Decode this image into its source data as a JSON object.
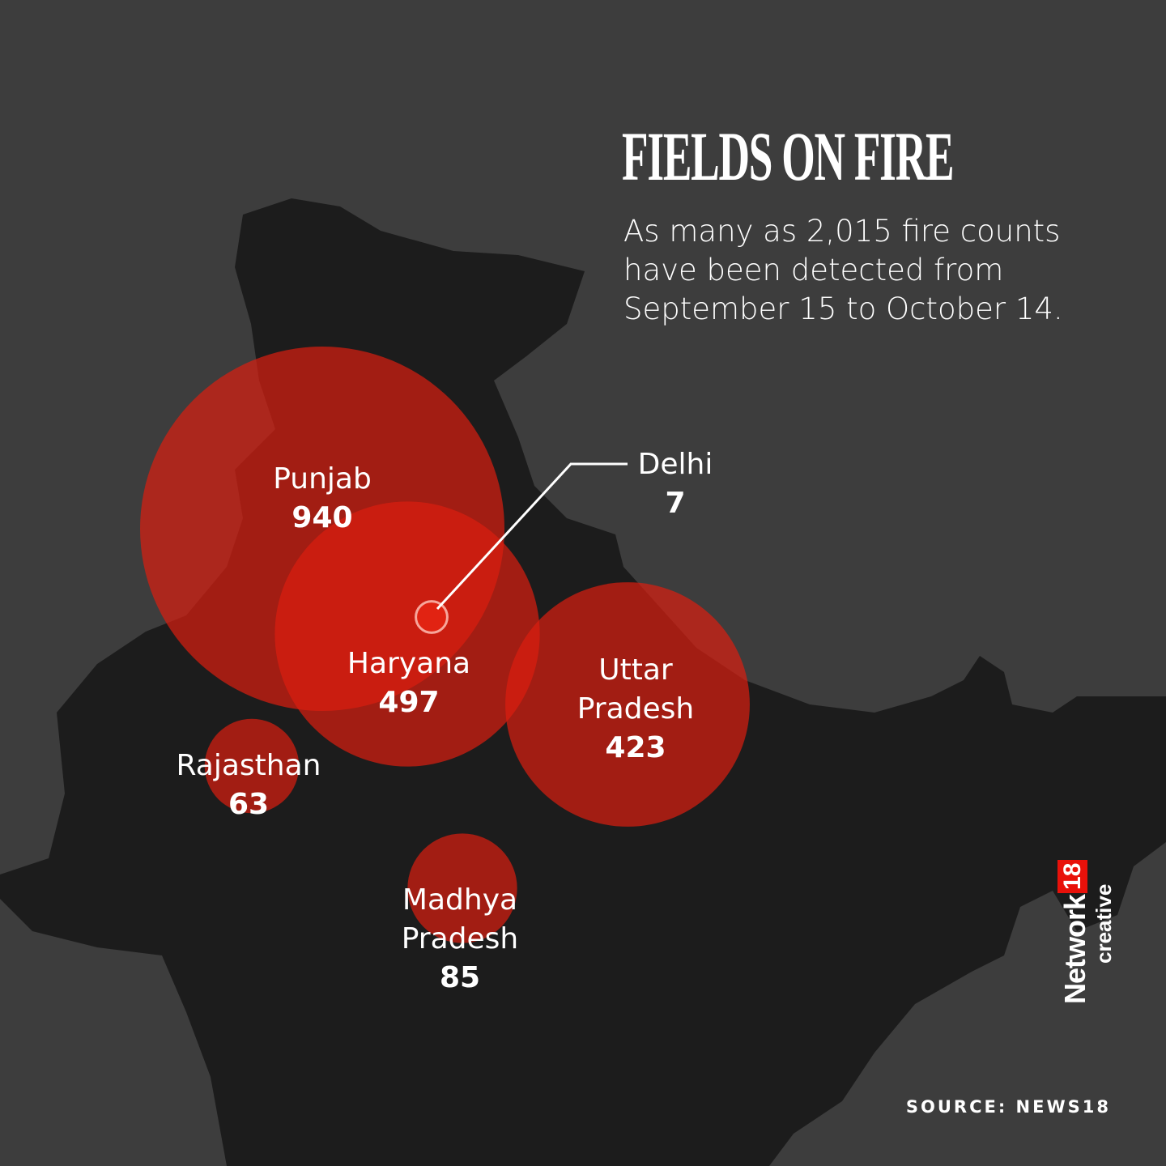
{
  "title": "FIELDS ON FIRE",
  "subtitle": "As many as 2,015 fire counts have been detected from September 15 to October 14.",
  "colors": {
    "background": "#3d3d3d",
    "land": "#1c1c1c",
    "circle": "#dc1e0f",
    "highlight": "#e8110a"
  },
  "states": [
    {
      "name": "Punjab",
      "value": "940",
      "count": 940
    },
    {
      "name": "Haryana",
      "value": "497",
      "count": 497
    },
    {
      "name": "Uttar Pradesh",
      "value": "423",
      "count": 423
    },
    {
      "name": "Rajasthan",
      "value": "63",
      "count": 63
    },
    {
      "name": "Madhya Pradesh",
      "value": "85",
      "count": 85
    },
    {
      "name": "Delhi",
      "value": "7",
      "count": 7
    }
  ],
  "source": "SOURCE: NEWS18",
  "logo": {
    "brand": "Network",
    "number": "18",
    "sub": "creative"
  }
}
